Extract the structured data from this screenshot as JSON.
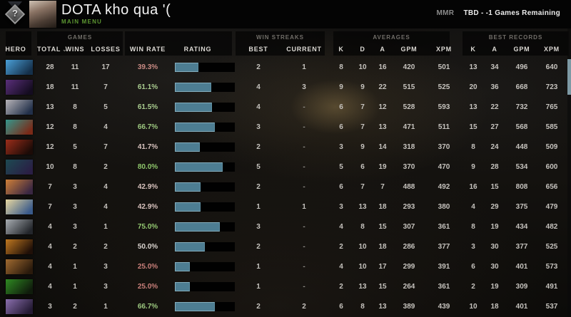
{
  "header": {
    "player_name": "DOTA kho qua '(",
    "nav_label": "MAIN MENU",
    "nav_color": "#5d9732",
    "medal": "unranked-question-medal",
    "mmr_label": "MMR",
    "mmr_value": "TBD - -1 Games Remaining"
  },
  "table": {
    "groups": {
      "games": "GAMES",
      "streaks": "WIN STREAKS",
      "averages": "AVERAGES",
      "records": "BEST RECORDS"
    },
    "columns": [
      "HERO",
      "TOTAL",
      "WINS",
      "LOSSES",
      "WIN RATE",
      "RATING",
      "BEST",
      "CURRENT",
      "K",
      "D",
      "A",
      "GPM",
      "XPM",
      "K",
      "A",
      "GPM",
      "XPM"
    ],
    "sort_column": "TOTAL",
    "sort_icon": "chevron-down-icon",
    "bar_colors": {
      "fill": "#4d7d92",
      "border": "#85aebd",
      "track": "#010101"
    },
    "rows": [
      {
        "hero": "hero-1",
        "icon_colors": [
          "#4aa0d8",
          "#15304a"
        ],
        "total": 28,
        "wins": 11,
        "losses": 17,
        "win_rate": "39.3%",
        "win_rate_pct": 39.3,
        "win_rate_color": "#c98a84",
        "best": 2,
        "current": "1",
        "k": 8,
        "d": 10,
        "a": 16,
        "gpm": 420,
        "xpm": 501,
        "rec_k": 13,
        "rec_a": 34,
        "rec_gpm": 496,
        "rec_xpm": 640
      },
      {
        "hero": "hero-2",
        "icon_colors": [
          "#5a2f7a",
          "#140c20"
        ],
        "total": 18,
        "wins": 11,
        "losses": 7,
        "win_rate": "61.1%",
        "win_rate_pct": 61.1,
        "win_rate_color": "#a9cc8f",
        "best": 4,
        "current": "3",
        "k": 9,
        "d": 9,
        "a": 22,
        "gpm": 515,
        "xpm": 525,
        "rec_k": 20,
        "rec_a": 36,
        "rec_gpm": 668,
        "rec_xpm": 723
      },
      {
        "hero": "hero-3",
        "icon_colors": [
          "#b8b4b8",
          "#22304a"
        ],
        "total": 13,
        "wins": 8,
        "losses": 5,
        "win_rate": "61.5%",
        "win_rate_pct": 61.5,
        "win_rate_color": "#a9cc8f",
        "best": 4,
        "current": "-",
        "k": 6,
        "d": 7,
        "a": 12,
        "gpm": 528,
        "xpm": 593,
        "rec_k": 13,
        "rec_a": 22,
        "rec_gpm": 732,
        "rec_xpm": 765
      },
      {
        "hero": "hero-4",
        "icon_colors": [
          "#35978c",
          "#7a2a18"
        ],
        "total": 12,
        "wins": 8,
        "losses": 4,
        "win_rate": "66.7%",
        "win_rate_pct": 66.7,
        "win_rate_color": "#9cc87f",
        "best": 3,
        "current": "-",
        "k": 6,
        "d": 7,
        "a": 13,
        "gpm": 471,
        "xpm": 511,
        "rec_k": 15,
        "rec_a": 27,
        "rec_gpm": 568,
        "rec_xpm": 585
      },
      {
        "hero": "hero-5",
        "icon_colors": [
          "#9c2d1a",
          "#1c0b07"
        ],
        "total": 12,
        "wins": 5,
        "losses": 7,
        "win_rate": "41.7%",
        "win_rate_pct": 41.7,
        "win_rate_color": "#d8c2be",
        "best": 2,
        "current": "-",
        "k": 3,
        "d": 9,
        "a": 14,
        "gpm": 318,
        "xpm": 370,
        "rec_k": 8,
        "rec_a": 24,
        "rec_gpm": 448,
        "rec_xpm": 509
      },
      {
        "hero": "hero-6",
        "icon_colors": [
          "#1d4a52",
          "#2a1f45"
        ],
        "total": 10,
        "wins": 8,
        "losses": 2,
        "win_rate": "80.0%",
        "win_rate_pct": 80.0,
        "win_rate_color": "#8ec66b",
        "best": 5,
        "current": "-",
        "k": 5,
        "d": 6,
        "a": 19,
        "gpm": 370,
        "xpm": 470,
        "rec_k": 9,
        "rec_a": 28,
        "rec_gpm": 534,
        "rec_xpm": 600
      },
      {
        "hero": "hero-7",
        "icon_colors": [
          "#d08038",
          "#3a2742"
        ],
        "total": 7,
        "wins": 3,
        "losses": 4,
        "win_rate": "42.9%",
        "win_rate_pct": 42.9,
        "win_rate_color": "#d8c2be",
        "best": 2,
        "current": "-",
        "k": 6,
        "d": 7,
        "a": 7,
        "gpm": 488,
        "xpm": 492,
        "rec_k": 16,
        "rec_a": 15,
        "rec_gpm": 808,
        "rec_xpm": 656
      },
      {
        "hero": "hero-8",
        "icon_colors": [
          "#e8d8a0",
          "#3a5a8a"
        ],
        "total": 7,
        "wins": 3,
        "losses": 4,
        "win_rate": "42.9%",
        "win_rate_pct": 42.9,
        "win_rate_color": "#d8c2be",
        "best": 1,
        "current": "1",
        "k": 3,
        "d": 13,
        "a": 18,
        "gpm": 293,
        "xpm": 380,
        "rec_k": 4,
        "rec_a": 29,
        "rec_gpm": 375,
        "rec_xpm": 479
      },
      {
        "hero": "hero-9",
        "icon_colors": [
          "#a8adb2",
          "#23262b"
        ],
        "total": 4,
        "wins": 3,
        "losses": 1,
        "win_rate": "75.0%",
        "win_rate_pct": 75.0,
        "win_rate_color": "#93c871",
        "best": 3,
        "current": "-",
        "k": 4,
        "d": 8,
        "a": 15,
        "gpm": 307,
        "xpm": 361,
        "rec_k": 8,
        "rec_a": 19,
        "rec_gpm": 434,
        "rec_xpm": 482
      },
      {
        "hero": "hero-10",
        "icon_colors": [
          "#c07820",
          "#201008"
        ],
        "total": 4,
        "wins": 2,
        "losses": 2,
        "win_rate": "50.0%",
        "win_rate_pct": 50.0,
        "win_rate_color": "#dbd5d1",
        "best": 2,
        "current": "-",
        "k": 2,
        "d": 10,
        "a": 18,
        "gpm": 286,
        "xpm": 377,
        "rec_k": 3,
        "rec_a": 30,
        "rec_gpm": 377,
        "rec_xpm": 525
      },
      {
        "hero": "hero-11",
        "icon_colors": [
          "#a06a30",
          "#2a1a0c"
        ],
        "total": 4,
        "wins": 1,
        "losses": 3,
        "win_rate": "25.0%",
        "win_rate_pct": 25.0,
        "win_rate_color": "#c97f7a",
        "best": 1,
        "current": "-",
        "k": 4,
        "d": 10,
        "a": 17,
        "gpm": 299,
        "xpm": 391,
        "rec_k": 6,
        "rec_a": 30,
        "rec_gpm": 401,
        "rec_xpm": 573
      },
      {
        "hero": "hero-12",
        "icon_colors": [
          "#2f8a22",
          "#101c0c"
        ],
        "total": 4,
        "wins": 1,
        "losses": 3,
        "win_rate": "25.0%",
        "win_rate_pct": 25.0,
        "win_rate_color": "#c97f7a",
        "best": 1,
        "current": "-",
        "k": 2,
        "d": 13,
        "a": 15,
        "gpm": 264,
        "xpm": 361,
        "rec_k": 2,
        "rec_a": 19,
        "rec_gpm": 309,
        "rec_xpm": 491
      },
      {
        "hero": "hero-13",
        "icon_colors": [
          "#8a6fae",
          "#241a33"
        ],
        "total": 3,
        "wins": 2,
        "losses": 1,
        "win_rate": "66.7%",
        "win_rate_pct": 66.7,
        "win_rate_color": "#9cc87f",
        "best": 2,
        "current": "2",
        "k": 6,
        "d": 8,
        "a": 13,
        "gpm": 389,
        "xpm": 439,
        "rec_k": 10,
        "rec_a": 18,
        "rec_gpm": 401,
        "rec_xpm": 537
      }
    ]
  }
}
